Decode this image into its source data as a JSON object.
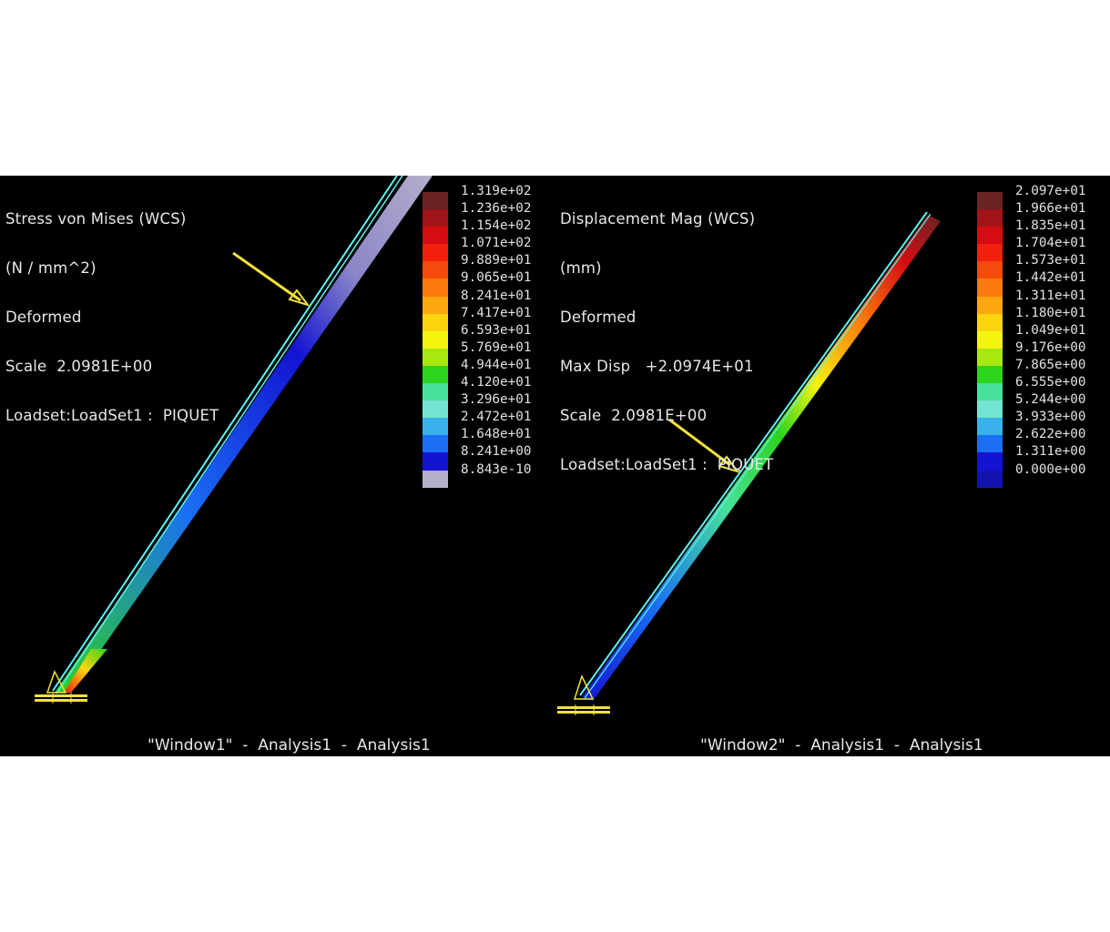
{
  "windows": [
    {
      "info_lines": [
        "Stress von Mises (WCS)",
        "(N / mm^2)",
        "Deformed",
        "Scale  2.0981E+00",
        "Loadset:LoadSet1 :  PIQUET"
      ],
      "legend_labels": [
        "1.319e+02",
        "1.236e+02",
        "1.154e+02",
        "1.071e+02",
        "9.889e+01",
        "9.065e+01",
        "8.241e+01",
        "7.417e+01",
        "6.593e+01",
        "5.769e+01",
        "4.944e+01",
        "4.120e+01",
        "3.296e+01",
        "2.472e+01",
        "1.648e+01",
        "8.241e+00",
        "8.843e-10"
      ],
      "legend_colors": [
        "#6a2325",
        "#a01418",
        "#d40d12",
        "#f4200e",
        "#f44a0c",
        "#fb7c0c",
        "#fba70d",
        "#fbd40e",
        "#f4f40e",
        "#a7e80f",
        "#2ed31e",
        "#47e09a",
        "#74e4d2",
        "#3ab1ea",
        "#1a6ff4",
        "#1313d2",
        "#b5aeca"
      ],
      "title": "\"Window1\"  -  Analysis1  -  Analysis1"
    },
    {
      "info_lines": [
        "Displacement Mag (WCS)",
        "(mm)",
        "Deformed",
        "Max Disp   +2.0974E+01",
        "Scale  2.0981E+00",
        "Loadset:LoadSet1 :  PIQUET"
      ],
      "legend_labels": [
        "2.097e+01",
        "1.966e+01",
        "1.835e+01",
        "1.704e+01",
        "1.573e+01",
        "1.442e+01",
        "1.311e+01",
        "1.180e+01",
        "1.049e+01",
        "9.176e+00",
        "7.865e+00",
        "6.555e+00",
        "5.244e+00",
        "3.933e+00",
        "2.622e+00",
        "1.311e+00",
        "0.000e+00"
      ],
      "legend_colors": [
        "#6a2325",
        "#a01418",
        "#d40d12",
        "#f4200e",
        "#f44a0c",
        "#fb7c0c",
        "#fba70d",
        "#fbd40e",
        "#f4f40e",
        "#a7e80f",
        "#2ed31e",
        "#47e09a",
        "#74e4d2",
        "#3ab1ea",
        "#1a6ff4",
        "#1313d2",
        "#1313b0"
      ],
      "title": "\"Window2\"  -  Analysis1  -  Analysis1"
    }
  ]
}
